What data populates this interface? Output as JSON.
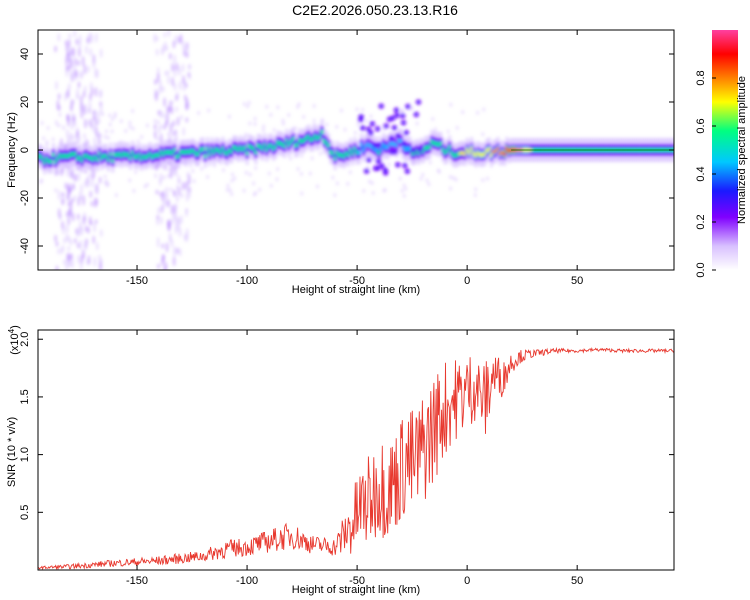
{
  "title": "C2E2.2026.050.23.13.R16",
  "colors": {
    "snr_line": "#e8392f",
    "colormap": [
      "#ffffff",
      "#d8c0ff",
      "#8000ff",
      "#1a1aff",
      "#00c8ff",
      "#00ff80",
      "#ffff00",
      "#ff8000",
      "#ff0000",
      "#ff40a0"
    ]
  },
  "chart_data": [
    {
      "type": "heatmap",
      "xlabel": "Height of straight line (km)",
      "ylabel": "Frequency (Hz)",
      "xlim": [
        -195,
        94
      ],
      "ylim": [
        -50,
        50
      ],
      "x_ticks": [
        "-150",
        "-100",
        "-50",
        "0",
        "50"
      ],
      "x_tick_values": [
        -150,
        -100,
        -50,
        0,
        50
      ],
      "y_ticks": [
        "-40",
        "-20",
        "0",
        "20",
        "40"
      ],
      "y_tick_values": [
        -40,
        -20,
        0,
        20,
        40
      ],
      "colorbar": {
        "label": "Normalized spectral amplitude",
        "range": [
          0,
          1
        ],
        "ticks": [
          "0.0",
          "0.2",
          "0.4",
          "0.6",
          "0.8"
        ],
        "tick_values": [
          0,
          0.2,
          0.4,
          0.6,
          0.8
        ]
      },
      "trace": {
        "x": [
          -195,
          -180,
          -160,
          -140,
          -120,
          -100,
          -85,
          -70,
          -66,
          -60,
          -50,
          -45,
          -40,
          -35,
          -30,
          -25,
          -20,
          -15,
          -10,
          -5,
          0,
          10,
          20,
          30,
          50,
          94
        ],
        "y": [
          -4,
          -3,
          -3,
          -2,
          -1,
          0,
          2,
          5,
          7,
          -3,
          0,
          2,
          0,
          2,
          4,
          -2,
          0,
          3,
          0,
          -1,
          -1,
          -1,
          0,
          0,
          0,
          0
        ],
        "amplitude": [
          0.5,
          0.5,
          0.5,
          0.5,
          0.5,
          0.5,
          0.55,
          0.55,
          0.55,
          0.5,
          0.5,
          0.45,
          0.5,
          0.45,
          0.45,
          0.5,
          0.55,
          0.6,
          0.6,
          0.6,
          0.65,
          0.7,
          0.9,
          0.6,
          0.6,
          0.6
        ]
      }
    },
    {
      "type": "line",
      "xlabel": "Height of straight line (km)",
      "ylabel": "SNR (10 * v/v)",
      "y_multiplier": "(x10",
      "y_multiplier_exp": "4",
      "y_multiplier_close": ")",
      "xlim": [
        -195,
        94
      ],
      "ylim": [
        0,
        2.08
      ],
      "x_ticks": [
        "-150",
        "-100",
        "-50",
        "0",
        "50"
      ],
      "x_tick_values": [
        -150,
        -100,
        -50,
        0,
        50
      ],
      "y_ticks": [
        "0.5",
        "1.0",
        "1.5",
        "2.0"
      ],
      "y_tick_values": [
        0.5,
        1.0,
        1.5,
        2.0
      ],
      "series": [
        {
          "x": [
            -195,
            -180,
            -160,
            -140,
            -120,
            -110,
            -100,
            -90,
            -80,
            -70,
            -60,
            -52,
            -48,
            -44,
            -40,
            -36,
            -32,
            -28,
            -24,
            -20,
            -16,
            -12,
            -8,
            -4,
            0,
            4,
            8,
            12,
            16,
            20,
            24,
            28,
            32,
            40,
            50,
            60,
            70,
            80,
            94
          ],
          "y": [
            0.02,
            0.03,
            0.06,
            0.08,
            0.12,
            0.18,
            0.2,
            0.25,
            0.3,
            0.22,
            0.2,
            0.4,
            0.55,
            0.6,
            0.75,
            0.7,
            0.8,
            0.95,
            0.9,
            1.05,
            1.2,
            1.35,
            1.45,
            1.5,
            1.55,
            1.6,
            1.45,
            1.7,
            1.65,
            1.8,
            1.85,
            1.87,
            1.88,
            1.9,
            1.9,
            1.91,
            1.9,
            1.9,
            1.9
          ],
          "noise": [
            0.01,
            0.02,
            0.03,
            0.04,
            0.05,
            0.08,
            0.08,
            0.1,
            0.12,
            0.08,
            0.08,
            0.3,
            0.4,
            0.4,
            0.45,
            0.45,
            0.45,
            0.5,
            0.5,
            0.5,
            0.5,
            0.45,
            0.4,
            0.35,
            0.35,
            0.3,
            0.35,
            0.25,
            0.15,
            0.1,
            0.06,
            0.04,
            0.03,
            0.02,
            0.015,
            0.015,
            0.015,
            0.015,
            0.015
          ]
        }
      ]
    }
  ]
}
